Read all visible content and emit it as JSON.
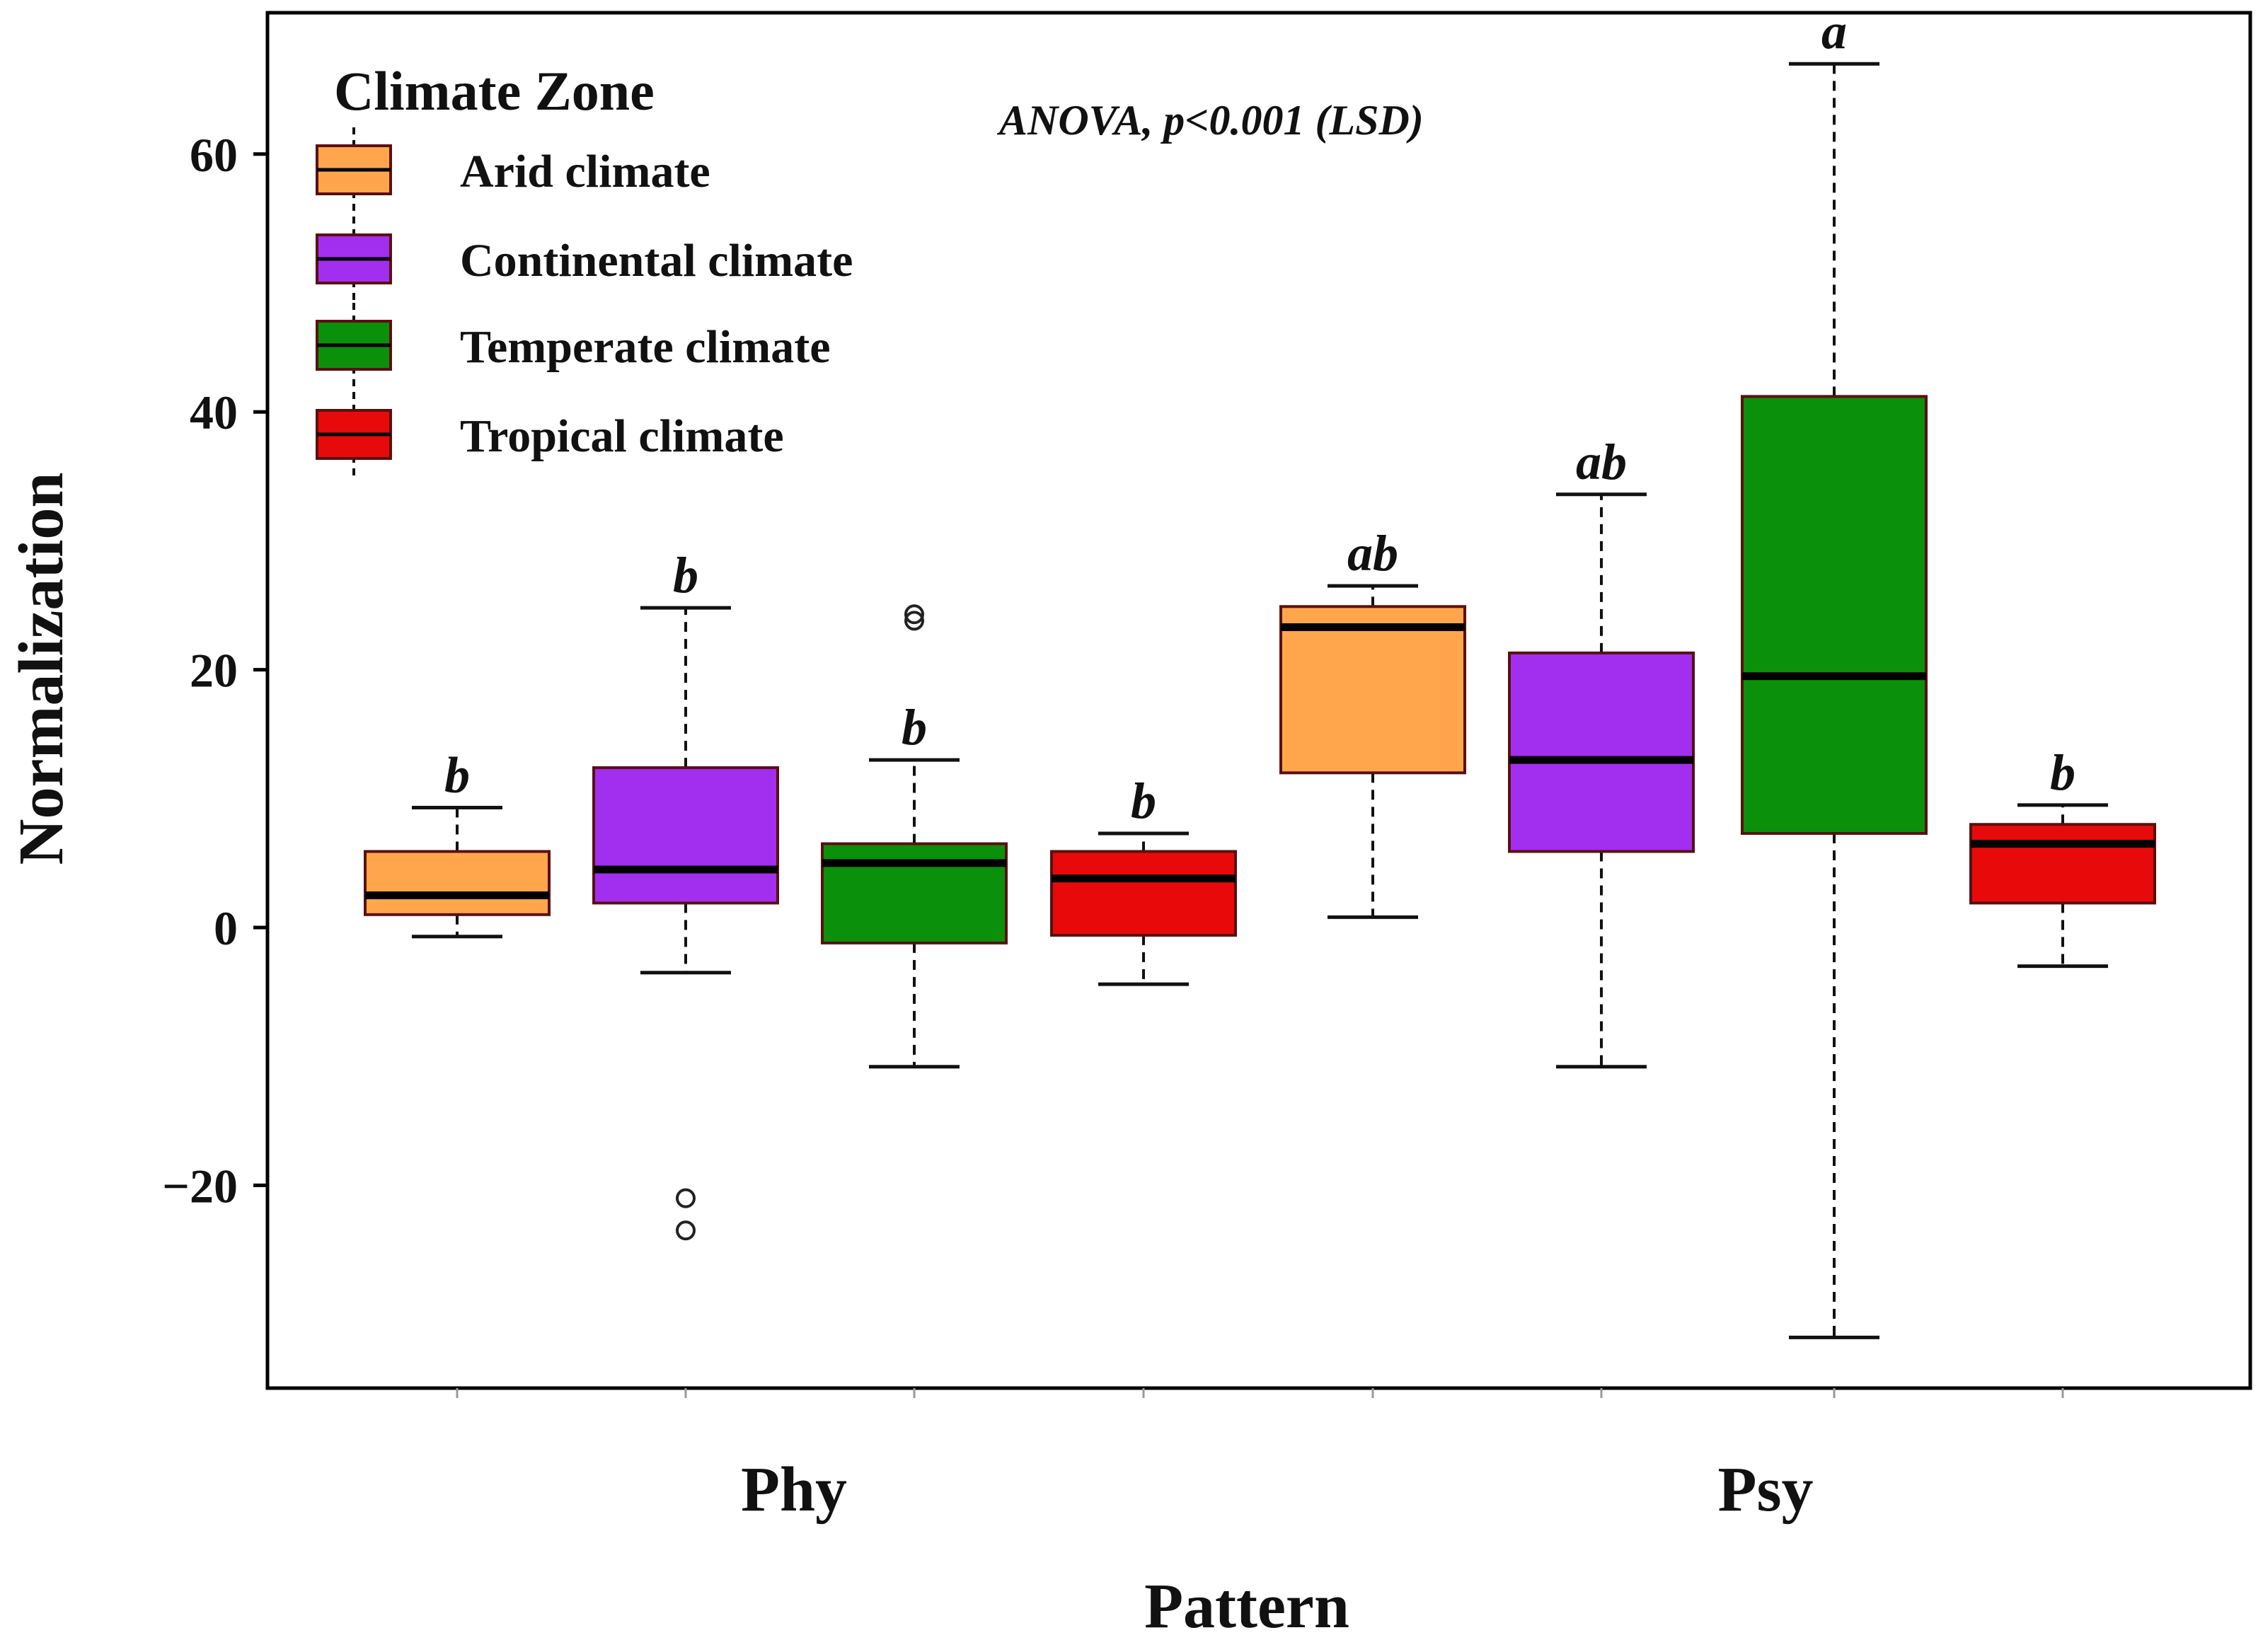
{
  "chart_data": {
    "type": "box",
    "title": "",
    "annotation": "ANOVA, p<0.001 (LSD)",
    "xlabel": "Pattern",
    "ylabel": "Normalization",
    "ylim": [
      -35,
      71
    ],
    "yticks": [
      -20,
      0,
      20,
      40,
      60
    ],
    "ytick_labels": [
      "−20",
      "0",
      "20",
      "40",
      "60"
    ],
    "categories": [
      "Phy",
      "Psy"
    ],
    "legend": {
      "title": "Climate Zone",
      "position": "top-left",
      "entries": [
        "Arid climate",
        "Continental climate",
        "Temperate climate",
        "Tropical climate"
      ]
    },
    "series": [
      {
        "name": "Arid climate",
        "color": "#FFA64D",
        "boxes": [
          {
            "category": "Phy",
            "whisker_low": -0.7,
            "q1": 1.0,
            "median": 2.5,
            "q3": 5.9,
            "whisker_high": 9.3,
            "outliers": [],
            "letter": "b"
          },
          {
            "category": "Psy",
            "whisker_low": 0.8,
            "q1": 12.0,
            "median": 23.3,
            "q3": 24.9,
            "whisker_high": 26.5,
            "outliers": [],
            "letter": "ab"
          }
        ]
      },
      {
        "name": "Continental climate",
        "color": "#A22EF0",
        "boxes": [
          {
            "category": "Phy",
            "whisker_low": -3.5,
            "q1": 1.9,
            "median": 4.5,
            "q3": 12.4,
            "whisker_high": 24.8,
            "outliers": [
              -21.0,
              -23.5
            ],
            "letter": "b"
          },
          {
            "category": "Psy",
            "whisker_low": -10.8,
            "q1": 5.9,
            "median": 13.0,
            "q3": 21.3,
            "whisker_high": 33.6,
            "outliers": [],
            "letter": "ab"
          }
        ]
      },
      {
        "name": "Temperate climate",
        "color": "#0A900A",
        "boxes": [
          {
            "category": "Phy",
            "whisker_low": -10.8,
            "q1": -1.2,
            "median": 5.0,
            "q3": 6.5,
            "whisker_high": 13.0,
            "outliers": [
              24.3,
              23.8
            ],
            "letter": "b"
          },
          {
            "category": "Psy",
            "whisker_low": -31.8,
            "q1": 7.3,
            "median": 19.5,
            "q3": 41.2,
            "whisker_high": 67.0,
            "outliers": [],
            "letter": "a"
          }
        ]
      },
      {
        "name": "Tropical climate",
        "color": "#E80A0A",
        "boxes": [
          {
            "category": "Phy",
            "whisker_low": -4.4,
            "q1": -0.6,
            "median": 3.8,
            "q3": 5.9,
            "whisker_high": 7.3,
            "outliers": [],
            "letter": "b"
          },
          {
            "category": "Psy",
            "whisker_low": -3.0,
            "q1": 1.9,
            "median": 6.5,
            "q3": 8.0,
            "whisker_high": 9.5,
            "outliers": [],
            "letter": "b"
          }
        ]
      }
    ]
  }
}
